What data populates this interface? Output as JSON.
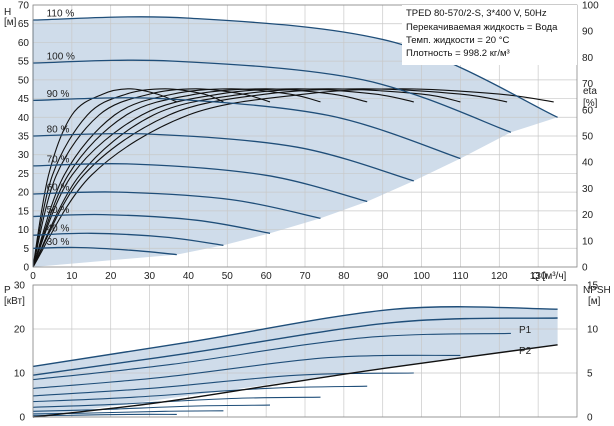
{
  "chart_data": [
    {
      "type": "line",
      "title": "TPED 80-570/2-S, 3*400 V, 50Hz",
      "notes": [
        "Перекачиваемая жидкость = Вода",
        "Темп. жидкости = 20 °C",
        "Плотность = 998.2 кг/м³"
      ],
      "xlabel": "Q [м³/ч]",
      "ylabel_left": "H",
      "ylabel_left_unit": "[м]",
      "ylabel_right": "eta",
      "ylabel_right_unit": "[%]",
      "xlim": [
        0,
        140
      ],
      "ylim_left": [
        0,
        70
      ],
      "ylim_right": [
        0,
        100
      ],
      "x_ticks": [
        "0",
        "10",
        "20",
        "30",
        "40",
        "50",
        "60",
        "70",
        "80",
        "90",
        "100",
        "110",
        "120",
        "130"
      ],
      "x_tick_values": [
        0,
        10,
        20,
        30,
        40,
        50,
        60,
        70,
        80,
        90,
        100,
        110,
        120,
        130
      ],
      "y_left_ticks": [
        "0",
        "5",
        "10",
        "15",
        "20",
        "25",
        "30",
        "35",
        "40",
        "45",
        "50",
        "55",
        "60",
        "65",
        "70"
      ],
      "y_left_tick_values": [
        0,
        5,
        10,
        15,
        20,
        25,
        30,
        35,
        40,
        45,
        50,
        55,
        60,
        65,
        70
      ],
      "y_right_ticks": [
        "0",
        "10",
        "20",
        "30",
        "40",
        "50",
        "60",
        "70",
        "80",
        "90",
        "100"
      ],
      "y_right_tick_values": [
        0,
        10,
        20,
        30,
        40,
        50,
        60,
        70,
        80,
        90,
        100
      ],
      "head_curves": [
        {
          "label": "110 %",
          "x": [
            0,
            40,
            93,
            135
          ],
          "y": [
            66,
            66.5,
            60,
            40
          ]
        },
        {
          "label": "100 %",
          "x": [
            0,
            36,
            85,
            123
          ],
          "y": [
            54.5,
            55,
            50,
            36
          ]
        },
        {
          "label": "90 %",
          "x": [
            0,
            33,
            76,
            110
          ],
          "y": [
            44.5,
            45,
            40.5,
            29
          ]
        },
        {
          "label": "80 %",
          "x": [
            0,
            30,
            68,
            98
          ],
          "y": [
            35,
            35.5,
            32,
            23
          ]
        },
        {
          "label": "70 %",
          "x": [
            0,
            26,
            60,
            86
          ],
          "y": [
            27,
            27.5,
            24.5,
            17.5
          ]
        },
        {
          "label": "60 %",
          "x": [
            0,
            22,
            51,
            74
          ],
          "y": [
            19.5,
            20,
            18,
            13
          ]
        },
        {
          "label": "50 %",
          "x": [
            0,
            18,
            42,
            61
          ],
          "y": [
            13.5,
            14,
            12.5,
            9
          ]
        },
        {
          "label": "40 %",
          "x": [
            0,
            15,
            34,
            49
          ],
          "y": [
            8.5,
            9,
            8,
            5.8
          ]
        },
        {
          "label": "30 %",
          "x": [
            0,
            11,
            25,
            37
          ],
          "y": [
            5,
            5.2,
            4.5,
            3.3
          ]
        }
      ],
      "efficiency_curves": [
        {
          "x": [
            0,
            15,
            40,
            70,
            95,
            120,
            134
          ],
          "y": [
            0,
            35,
            58,
            66,
            68,
            66,
            63
          ]
        },
        {
          "x": [
            0,
            13,
            35,
            60,
            85,
            110,
            122
          ],
          "y": [
            0,
            35,
            58,
            66,
            68,
            66,
            63
          ]
        },
        {
          "x": [
            0,
            12,
            31,
            54,
            76,
            100,
            110
          ],
          "y": [
            0,
            35,
            58,
            66,
            68,
            66,
            63
          ]
        },
        {
          "x": [
            0,
            10,
            28,
            48,
            68,
            88,
            98
          ],
          "y": [
            0,
            35,
            58,
            66,
            68,
            66,
            63
          ]
        },
        {
          "x": [
            0,
            9,
            24,
            42,
            60,
            77,
            86
          ],
          "y": [
            0,
            35,
            58,
            66,
            68,
            66,
            63
          ]
        },
        {
          "x": [
            0,
            8,
            21,
            36,
            51,
            66,
            74
          ],
          "y": [
            0,
            35,
            58,
            66,
            68,
            66,
            63
          ]
        },
        {
          "x": [
            0,
            6,
            17,
            30,
            42,
            54,
            61
          ],
          "y": [
            0,
            35,
            58,
            66,
            68,
            66,
            63
          ]
        },
        {
          "x": [
            0,
            5,
            14,
            24,
            34,
            44,
            49
          ],
          "y": [
            0,
            35,
            58,
            66,
            68,
            66,
            63
          ]
        },
        {
          "x": [
            0,
            4,
            10,
            18,
            25,
            32,
            37
          ],
          "y": [
            0,
            35,
            58,
            66,
            68,
            66,
            63
          ]
        }
      ]
    },
    {
      "type": "line",
      "xlabel": "",
      "ylabel_left": "P",
      "ylabel_left_unit": "[кВт]",
      "ylabel_right": "NPSH",
      "ylabel_right_unit": "[м]",
      "xlim": [
        0,
        140
      ],
      "ylim_left": [
        0,
        30
      ],
      "ylim_right": [
        0,
        15
      ],
      "y_left_ticks": [
        "0",
        "10",
        "20",
        "30"
      ],
      "y_left_tick_values": [
        0,
        10,
        20,
        30
      ],
      "y_right_ticks": [
        "0",
        "5",
        "10",
        "15"
      ],
      "y_right_tick_values": [
        0,
        5,
        10,
        15
      ],
      "series_labels": [
        "P1",
        "P2"
      ],
      "power_curves": [
        {
          "x": [
            0,
            40,
            93,
            135
          ],
          "y": [
            11.5,
            17,
            24.5,
            24.5
          ]
        },
        {
          "x": [
            0,
            40,
            93,
            135
          ],
          "y": [
            9.5,
            14.5,
            21.5,
            22.5
          ]
        },
        {
          "x": [
            0,
            36,
            85,
            123
          ],
          "y": [
            8.5,
            12,
            18,
            19
          ]
        },
        {
          "x": [
            0,
            33,
            76,
            110
          ],
          "y": [
            6.5,
            9,
            13.5,
            14
          ]
        },
        {
          "x": [
            0,
            30,
            68,
            98
          ],
          "y": [
            4.8,
            6.5,
            9.5,
            10
          ]
        },
        {
          "x": [
            0,
            26,
            60,
            86
          ],
          "y": [
            3.5,
            4.5,
            6.5,
            7
          ]
        },
        {
          "x": [
            0,
            22,
            51,
            74
          ],
          "y": [
            2.2,
            2.9,
            4.2,
            4.5
          ]
        },
        {
          "x": [
            0,
            18,
            42,
            61
          ],
          "y": [
            1.3,
            1.7,
            2.5,
            2.7
          ]
        },
        {
          "x": [
            0,
            15,
            34,
            49
          ],
          "y": [
            0.7,
            0.9,
            1.3,
            1.4
          ]
        },
        {
          "x": [
            0,
            11,
            25,
            37
          ],
          "y": [
            0.3,
            0.4,
            0.6,
            0.6
          ]
        }
      ],
      "npsh_curve": {
        "x": [
          0,
          30,
          60,
          90,
          135
        ],
        "y": [
          0,
          1.5,
          3.5,
          5.5,
          8.2
        ]
      }
    }
  ]
}
